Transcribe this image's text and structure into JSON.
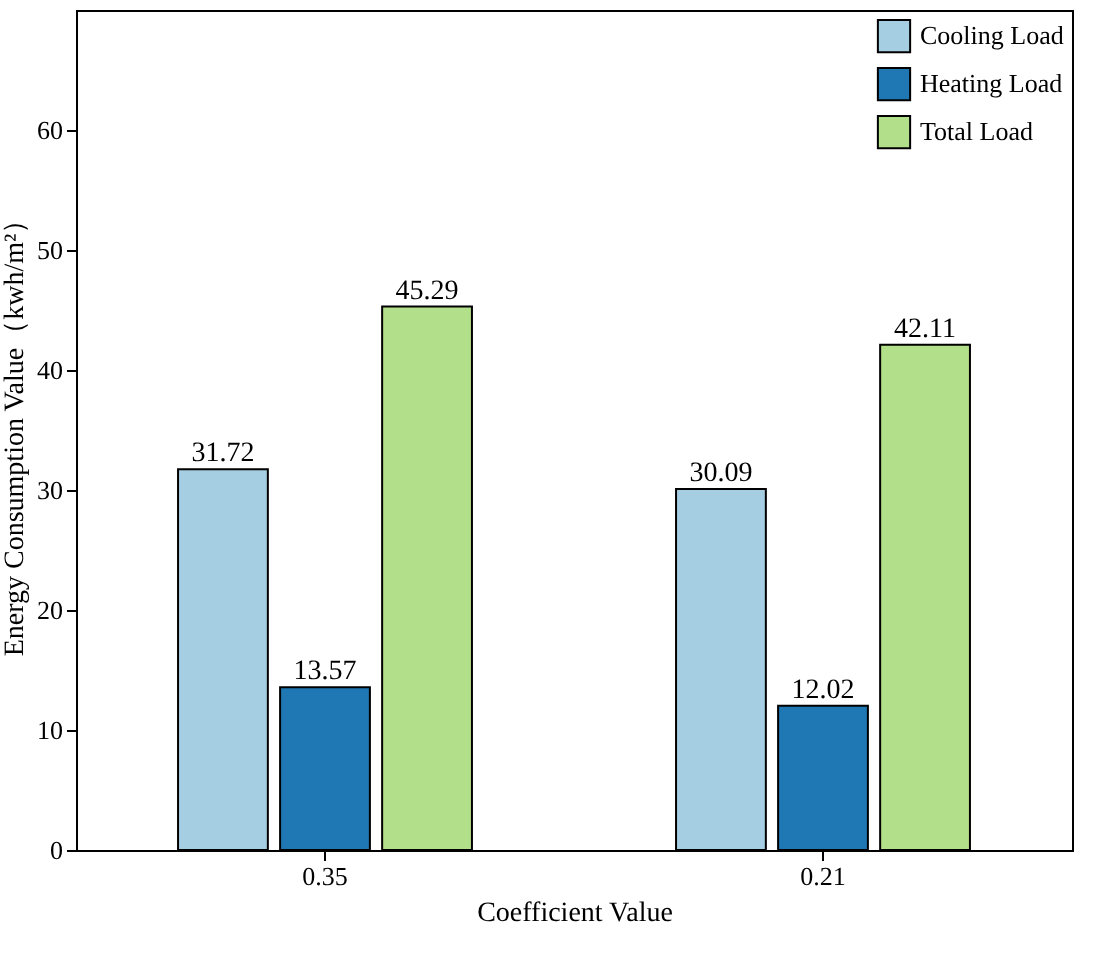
{
  "chart_data": {
    "type": "bar",
    "xlabel": "Coefficient Value",
    "ylabel": "Energy Consumption Value（kwh/m²）",
    "categories": [
      "0.35",
      "0.21"
    ],
    "series": [
      {
        "name": "Cooling Load",
        "color": "#a6cee3",
        "values": [
          31.72,
          30.09
        ]
      },
      {
        "name": "Heating Load",
        "color": "#1f78b4",
        "values": [
          13.57,
          12.02
        ]
      },
      {
        "name": "Total Load",
        "color": "#b2df8a",
        "values": [
          45.29,
          42.11
        ]
      }
    ],
    "ylim": [
      0,
      70
    ],
    "yticks": [
      0,
      10,
      20,
      30,
      40,
      50,
      60
    ],
    "data_labels": true,
    "legend": "top right",
    "grid": false
  }
}
